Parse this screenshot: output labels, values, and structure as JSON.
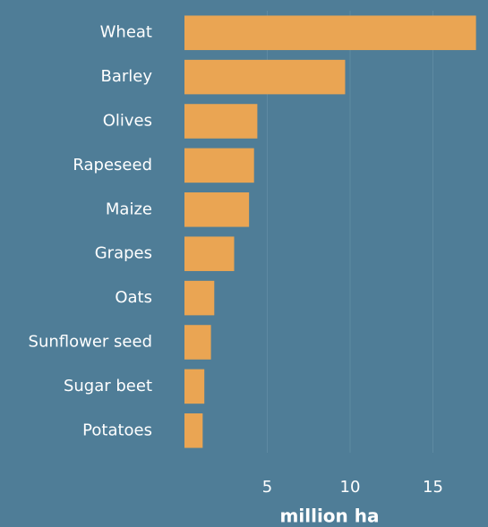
{
  "chart_data": {
    "type": "hbar",
    "xlabel": "million ha",
    "categories": [
      "Wheat",
      "Barley",
      "Olives",
      "Rapeseed",
      "Maize",
      "Grapes",
      "Oats",
      "Sunflower seed",
      "Sugar beet",
      "Potatoes"
    ],
    "values": [
      17.6,
      9.7,
      4.4,
      4.2,
      3.9,
      3.0,
      1.8,
      1.6,
      1.2,
      1.1
    ],
    "color": "#eaa553",
    "xlim": [
      0,
      18
    ],
    "xticks": [
      5,
      10,
      15
    ],
    "grid": true
  }
}
